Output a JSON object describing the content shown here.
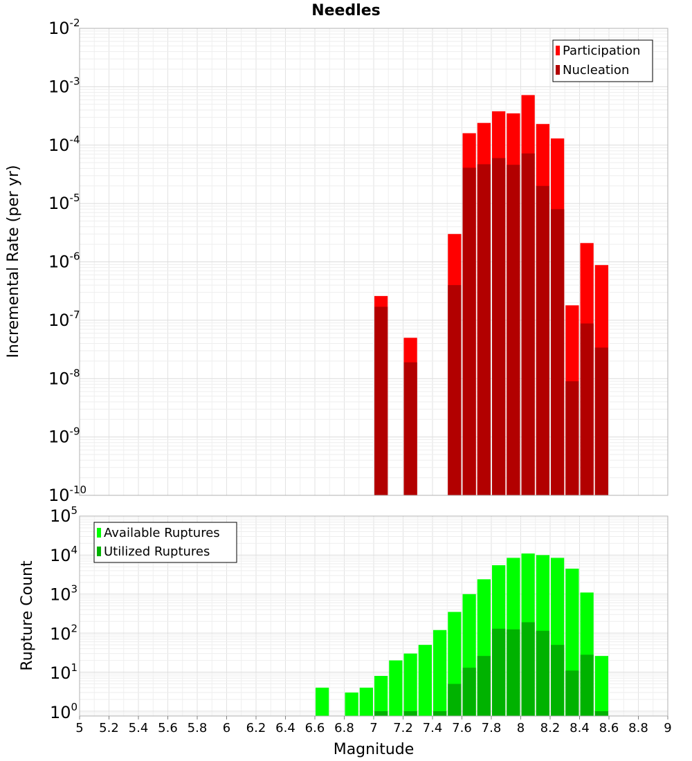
{
  "chart_data": [
    {
      "type": "bar",
      "title": "Needles",
      "ylabel": "Incremental Rate (per yr)",
      "yscale": "log",
      "ylim": [
        1e-10,
        0.01
      ],
      "xlim": [
        5,
        9
      ],
      "grid": true,
      "legend_position": "top-right",
      "x": [
        7.05,
        7.25,
        7.55,
        7.65,
        7.75,
        7.85,
        7.95,
        8.05,
        8.15,
        8.25,
        8.35,
        8.45,
        8.55
      ],
      "series": [
        {
          "name": "Participation",
          "color": "#ff0000",
          "values": [
            2.6e-07,
            5e-08,
            3e-06,
            0.00016,
            0.00024,
            0.00038,
            0.00035,
            0.00072,
            0.00023,
            0.00013,
            1.8e-07,
            2.1e-06,
            8.8e-07
          ]
        },
        {
          "name": "Nucleation",
          "color": "#b20000",
          "values": [
            1.7e-07,
            1.9e-08,
            4e-07,
            4.1e-05,
            4.7e-05,
            6e-05,
            4.6e-05,
            7.2e-05,
            2e-05,
            8e-06,
            9e-09,
            8.8e-08,
            3.4e-08
          ]
        }
      ]
    },
    {
      "type": "bar",
      "xlabel": "Magnitude",
      "ylabel": "Rupture Count",
      "yscale": "log",
      "ylim": [
        0.75,
        100000.0
      ],
      "xlim": [
        5,
        9
      ],
      "grid": true,
      "legend_position": "top-left",
      "x": [
        6.65,
        6.85,
        6.95,
        7.05,
        7.15,
        7.25,
        7.35,
        7.45,
        7.55,
        7.65,
        7.75,
        7.85,
        7.95,
        8.05,
        8.15,
        8.25,
        8.35,
        8.45,
        8.55
      ],
      "series": [
        {
          "name": "Available Ruptures",
          "color": "#00ff00",
          "values": [
            4,
            3,
            4,
            8,
            20,
            30,
            50,
            120,
            350,
            1000,
            2400,
            5500,
            8500,
            11000,
            10000,
            8500,
            4500,
            1100,
            26
          ]
        },
        {
          "name": "Utilized Ruptures",
          "color": "#00b200",
          "values": [
            0,
            0,
            0,
            1,
            0,
            1,
            0,
            1,
            5,
            13,
            26,
            130,
            125,
            190,
            115,
            50,
            11,
            28,
            1
          ]
        }
      ]
    }
  ],
  "x_tick_labels": [
    "5",
    "5.2",
    "5.4",
    "5.6",
    "5.8",
    "6",
    "6.2",
    "6.4",
    "6.6",
    "6.8",
    "7",
    "7.2",
    "7.4",
    "7.6",
    "7.8",
    "8",
    "8.2",
    "8.4",
    "8.6",
    "8.8",
    "9"
  ],
  "top_y_ticks": [
    {
      "base": "10",
      "exp": "-10"
    },
    {
      "base": "10",
      "exp": "-9"
    },
    {
      "base": "10",
      "exp": "-8"
    },
    {
      "base": "10",
      "exp": "-7"
    },
    {
      "base": "10",
      "exp": "-6"
    },
    {
      "base": "10",
      "exp": "-5"
    },
    {
      "base": "10",
      "exp": "-4"
    },
    {
      "base": "10",
      "exp": "-3"
    },
    {
      "base": "10",
      "exp": "-2"
    }
  ],
  "bottom_y_ticks": [
    {
      "base": "10",
      "exp": "0"
    },
    {
      "base": "10",
      "exp": "1"
    },
    {
      "base": "10",
      "exp": "2"
    },
    {
      "base": "10",
      "exp": "3"
    },
    {
      "base": "10",
      "exp": "4"
    },
    {
      "base": "10",
      "exp": "5"
    }
  ]
}
